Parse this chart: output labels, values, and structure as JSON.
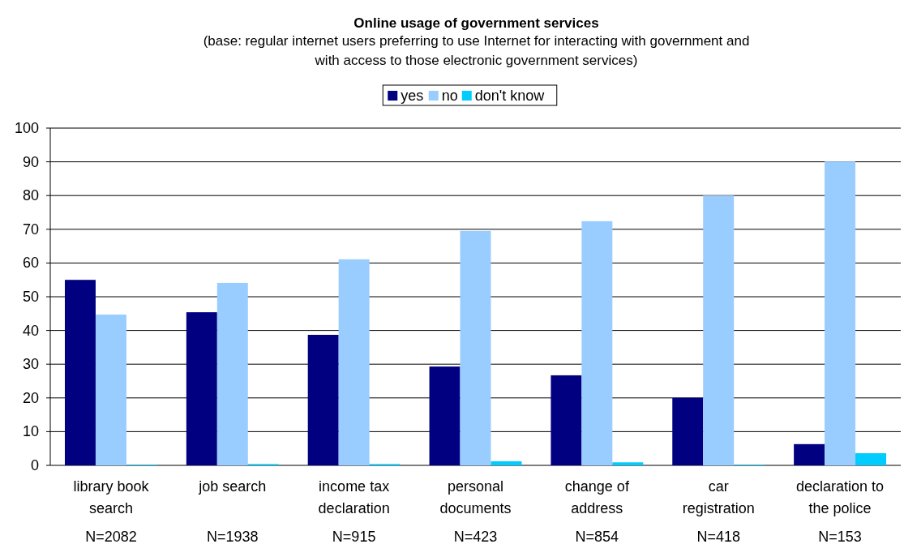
{
  "chart_data": {
    "type": "bar",
    "title": "Online usage of government services",
    "subtitle": "(base:  regular internet users preferring to use Internet for interacting with government and\nwith access to those electronic government services)",
    "categories": [
      "library book search\nN=2082",
      "job search\nN=1938",
      "income tax declaration\nN=915",
      "personal documents\nN=423",
      "change of address\nN=854",
      "car registration\nN=418",
      "declaration to the police\nN=153"
    ],
    "series": [
      {
        "name": "yes",
        "color": "#000080",
        "values": [
          55.0,
          45.4,
          38.7,
          29.3,
          26.7,
          20.0,
          6.3
        ]
      },
      {
        "name": "no",
        "color": "#99ccff",
        "values": [
          44.7,
          54.1,
          61.1,
          69.5,
          72.4,
          80.0,
          90.1
        ]
      },
      {
        "name": "don't know",
        "color": "#00ccff",
        "values": [
          0.2,
          0.4,
          0.4,
          1.2,
          0.9,
          0.2,
          3.6
        ]
      }
    ],
    "ylim": [
      0,
      100
    ],
    "yticks": [
      0,
      10,
      20,
      30,
      40,
      50,
      60,
      70,
      80,
      90,
      100
    ],
    "grid": "y",
    "legend": "top"
  }
}
